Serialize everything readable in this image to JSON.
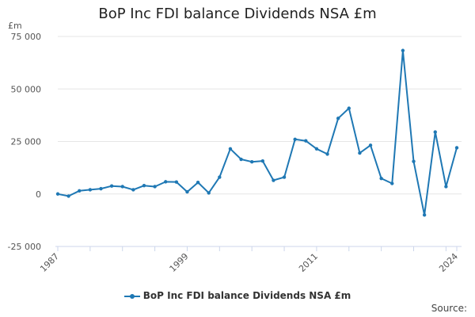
{
  "chart_data": {
    "type": "line",
    "title": "BoP Inc FDI balance Dividends NSA £m",
    "unit_label": "£m",
    "xlim": [
      1987,
      2024
    ],
    "ylim": [
      -25000,
      75000
    ],
    "y_ticks": [
      -25000,
      0,
      25000,
      50000,
      75000
    ],
    "y_tick_labels": [
      "-25 000",
      "0",
      "25 000",
      "50 000",
      "75 000"
    ],
    "x_ticks": [
      1987,
      1999,
      2011,
      2024
    ],
    "x_tick_labels": [
      "1987",
      "1999",
      "2011",
      "2024"
    ],
    "grid": "horizontal",
    "legend_position": "bottom",
    "series": [
      {
        "name": "BoP Inc FDI balance Dividends NSA £m",
        "color": "#1f78b4",
        "x": [
          1987,
          1988,
          1989,
          1990,
          1991,
          1992,
          1993,
          1994,
          1995,
          1996,
          1997,
          1998,
          1999,
          2000,
          2001,
          2002,
          2003,
          2004,
          2005,
          2006,
          2007,
          2008,
          2009,
          2010,
          2011,
          2012,
          2013,
          2014,
          2015,
          2016,
          2017,
          2018,
          2019,
          2020,
          2021,
          2022,
          2023,
          2024
        ],
        "values": [
          0,
          -1000,
          1500,
          2000,
          2500,
          3800,
          3500,
          2000,
          4000,
          3500,
          5800,
          5700,
          1000,
          5500,
          500,
          8000,
          21500,
          16500,
          15300,
          15700,
          6500,
          8000,
          26000,
          25300,
          21500,
          19000,
          36000,
          40800,
          19500,
          23200,
          7400,
          5000,
          68300,
          15500,
          -10000,
          29500,
          3500,
          22000
        ]
      }
    ]
  },
  "legend": {
    "label": "BoP Inc FDI balance Dividends NSA £m"
  },
  "footer": {
    "source_label": "Source:"
  }
}
